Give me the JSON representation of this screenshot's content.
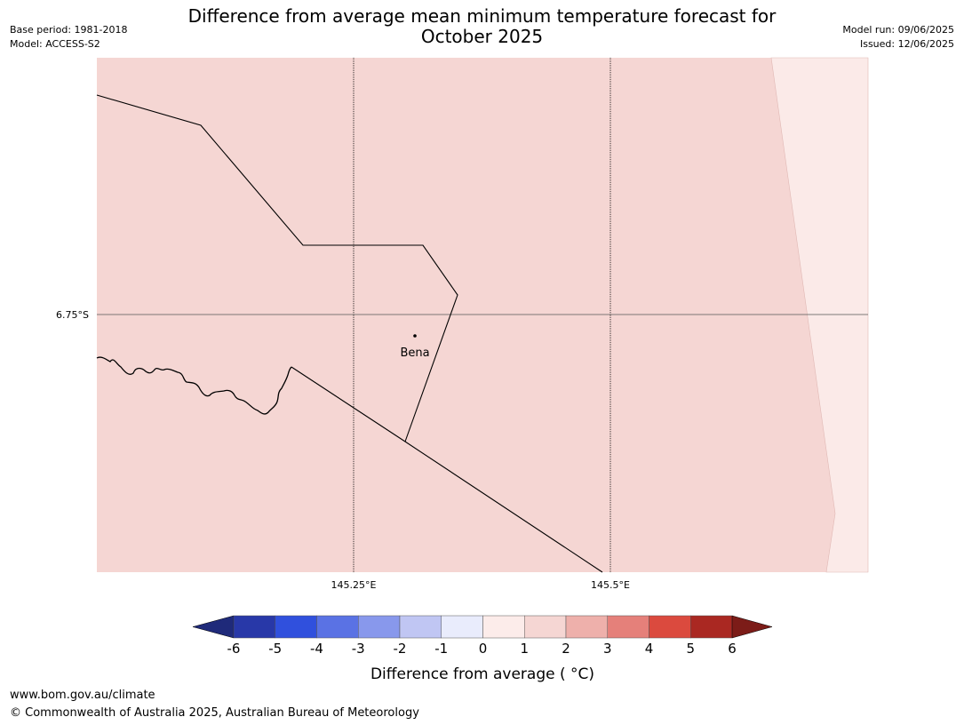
{
  "title_line1": "Difference from average mean minimum temperature forecast for",
  "title_line2": "October 2025",
  "meta": {
    "base_period": "Base period: 1981-2018",
    "model": "Model: ACCESS-S2",
    "model_run": "Model run: 09/06/2025",
    "issued": "Issued: 12/06/2025"
  },
  "map": {
    "lat_label": "6.75°S",
    "lon_labels": [
      "145.25°E",
      "145.5°E"
    ],
    "place": {
      "name": "Bena",
      "lat": -6.82,
      "lon": 145.31
    },
    "anomaly_zones": [
      {
        "range": "1 to 2",
        "color": "#f5d6d3"
      },
      {
        "range": "0 to 1",
        "color": "#fbeae8"
      }
    ]
  },
  "colorbar": {
    "label": "Difference from average ( °C)",
    "ticks": [
      "-6",
      "-5",
      "-4",
      "-3",
      "-2",
      "-1",
      "0",
      "1",
      "2",
      "3",
      "4",
      "5",
      "6"
    ],
    "under_color": "#1f2a7a",
    "over_color": "#7c1c18",
    "colors": [
      "#2838a8",
      "#3050dd",
      "#5a72e4",
      "#8898ec",
      "#c0c6f3",
      "#e9ecfc",
      "#fcecea",
      "#f5d6d3",
      "#eeb0ab",
      "#e5807a",
      "#db4a3e",
      "#aa2822"
    ]
  },
  "footer": {
    "url": "www.bom.gov.au/climate",
    "copyright": "© Commonwealth of Australia 2025, Australian Bureau of Meteorology"
  }
}
